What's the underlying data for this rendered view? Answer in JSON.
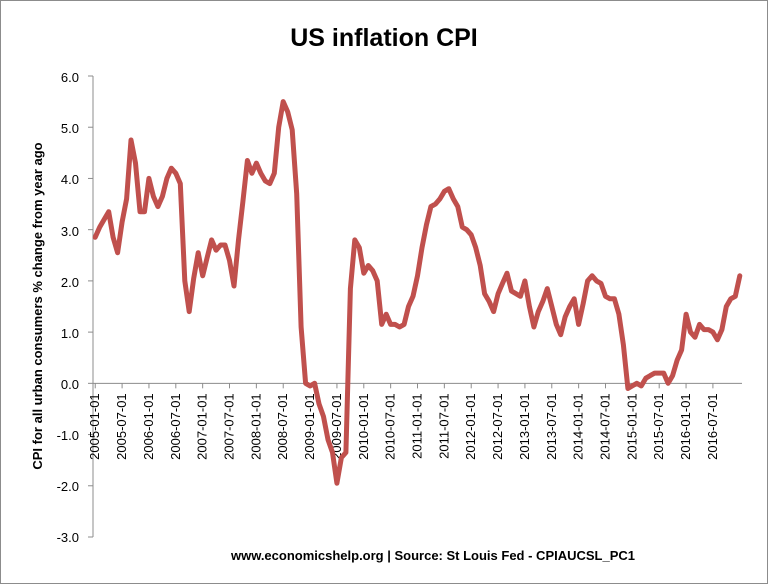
{
  "chart_data": {
    "type": "line",
    "title": "US inflation CPI",
    "ylabel": "CPI for all urban consumers % change from year ago",
    "xlabel": "",
    "source": "www.economicshelp.org | Source: St Louis Fed - CPIAUCSL_PC1",
    "ylim": [
      -3.0,
      6.0
    ],
    "yticks": [
      "6.0",
      "5.0",
      "4.0",
      "3.0",
      "2.0",
      "1.0",
      "0.0",
      "-1.0",
      "-2.0",
      "-3.0"
    ],
    "xticks": [
      "2005-01-01",
      "2005-07-01",
      "2006-01-01",
      "2006-07-01",
      "2007-01-01",
      "2007-07-01",
      "2008-01-01",
      "2008-07-01",
      "2009-01-01",
      "2009-07-01",
      "2010-01-01",
      "2010-07-01",
      "2011-01-01",
      "2011-07-01",
      "2012-01-01",
      "2012-07-01",
      "2013-01-01",
      "2013-07-01",
      "2014-01-01",
      "2014-07-01",
      "2015-01-01",
      "2015-07-01",
      "2016-01-01",
      "2016-07-01"
    ],
    "grid": false,
    "legend": "none",
    "color": "#c0504d",
    "series": [
      {
        "name": "CPIAUCSL_PC1",
        "start": "2005-01",
        "frequency": "monthly",
        "values": [
          2.85,
          3.05,
          3.2,
          3.35,
          2.85,
          2.55,
          3.15,
          3.6,
          4.75,
          4.3,
          3.35,
          3.35,
          4.0,
          3.65,
          3.45,
          3.65,
          4.0,
          4.2,
          4.1,
          3.9,
          2.0,
          1.4,
          2.05,
          2.55,
          2.1,
          2.45,
          2.8,
          2.6,
          2.7,
          2.7,
          2.4,
          1.9,
          2.8,
          3.55,
          4.35,
          4.1,
          4.3,
          4.1,
          3.95,
          3.9,
          4.1,
          5.0,
          5.5,
          5.3,
          4.95,
          3.7,
          1.1,
          0.0,
          -0.05,
          0.0,
          -0.4,
          -0.65,
          -1.1,
          -1.35,
          -1.95,
          -1.45,
          -1.35,
          1.85,
          2.8,
          2.65,
          2.15,
          2.3,
          2.2,
          2.0,
          1.15,
          1.35,
          1.15,
          1.15,
          1.1,
          1.15,
          1.5,
          1.7,
          2.1,
          2.65,
          3.1,
          3.45,
          3.5,
          3.6,
          3.75,
          3.8,
          3.6,
          3.45,
          3.05,
          3.0,
          2.9,
          2.65,
          2.3,
          1.75,
          1.6,
          1.4,
          1.75,
          1.95,
          2.15,
          1.8,
          1.75,
          1.7,
          2.0,
          1.5,
          1.1,
          1.4,
          1.6,
          1.85,
          1.5,
          1.15,
          0.95,
          1.3,
          1.5,
          1.65,
          1.15,
          1.55,
          2.0,
          2.1,
          2.0,
          1.95,
          1.7,
          1.65,
          1.65,
          1.35,
          0.75,
          -0.1,
          -0.05,
          0.0,
          -0.05,
          0.1,
          0.15,
          0.2,
          0.2,
          0.2,
          0.0,
          0.15,
          0.45,
          0.65,
          1.35,
          1.0,
          0.9,
          1.15,
          1.05,
          1.05,
          1.0,
          0.85,
          1.05,
          1.5,
          1.65,
          1.7,
          2.1
        ]
      }
    ]
  }
}
